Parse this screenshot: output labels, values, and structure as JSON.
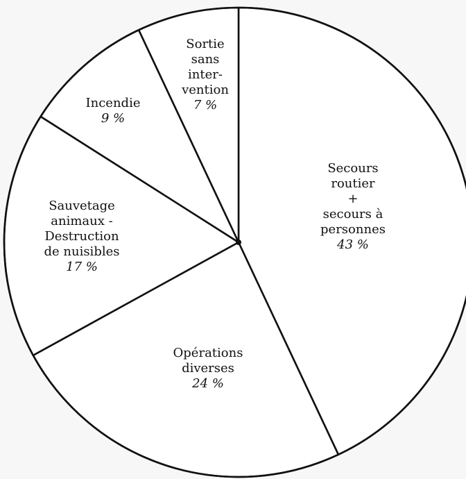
{
  "chart_data": {
    "type": "pie",
    "direction": "clockwise",
    "start_angle_deg": -90,
    "stroke_color": "#111111",
    "fill_color": "#ffffff",
    "background_color": "#f7f7f7",
    "slices": [
      {
        "key": "secours",
        "label_lines": [
          "Secours",
          "routier",
          "+",
          "secours à",
          "personnes"
        ],
        "value": 43,
        "percent_label": "43 %"
      },
      {
        "key": "operations",
        "label_lines": [
          "Opérations",
          "diverses"
        ],
        "value": 24,
        "percent_label": "24 %"
      },
      {
        "key": "sauvetage",
        "label_lines": [
          "Sauvetage",
          "animaux -",
          "Destruction",
          "de nuisibles"
        ],
        "value": 17,
        "percent_label": "17 %"
      },
      {
        "key": "incendie",
        "label_lines": [
          "Incendie"
        ],
        "value": 9,
        "percent_label": "9 %"
      },
      {
        "key": "sortie",
        "label_lines": [
          "Sortie",
          "sans",
          "inter-",
          "vention"
        ],
        "value": 7,
        "percent_label": "7 %"
      }
    ]
  }
}
